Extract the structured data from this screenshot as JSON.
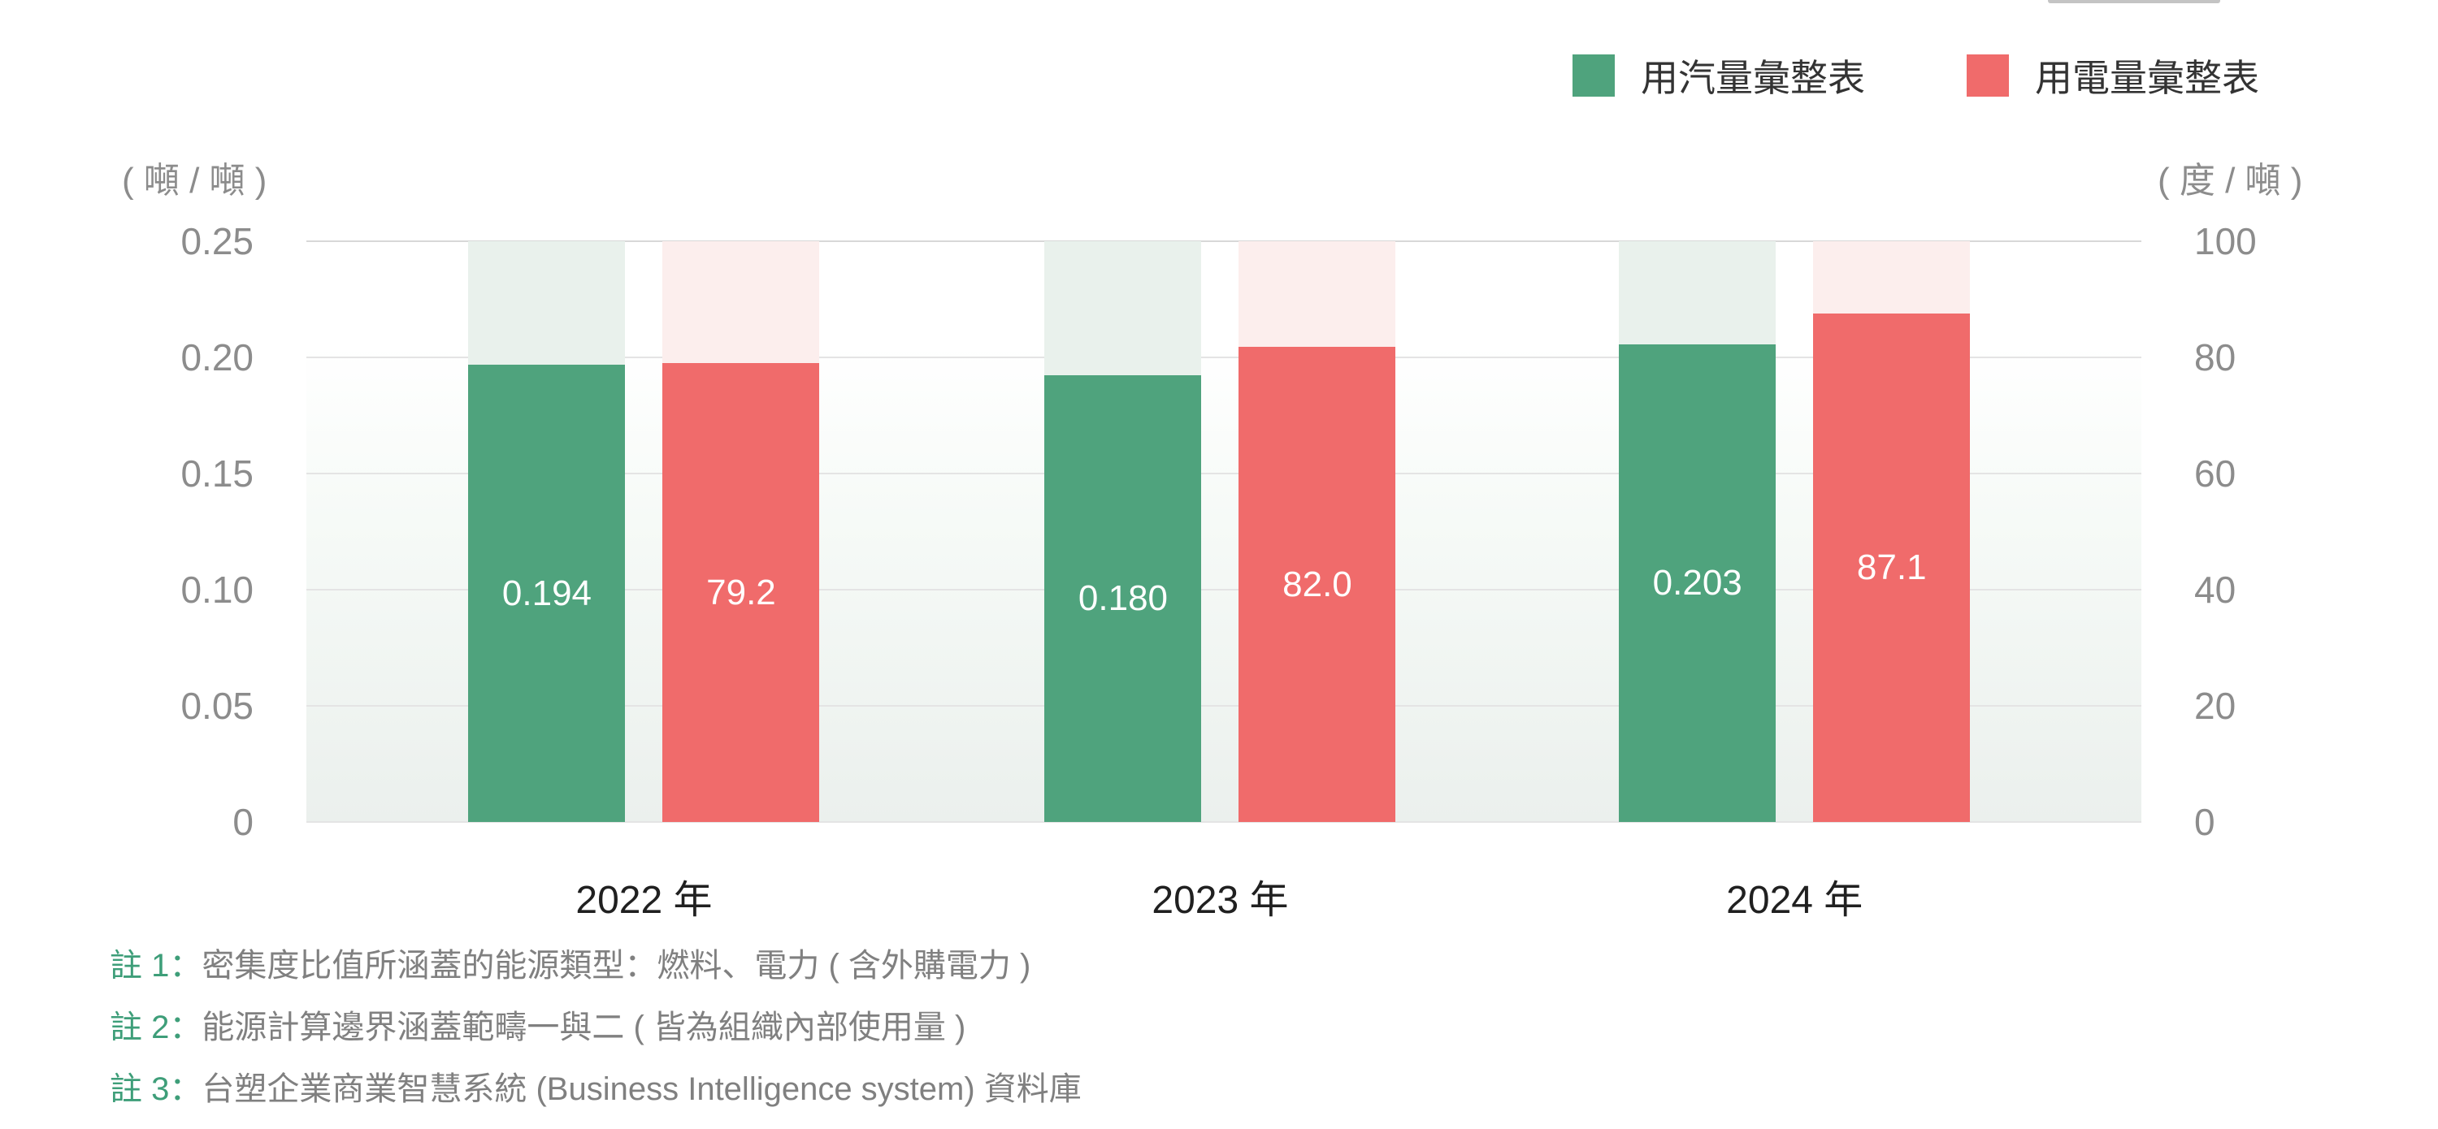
{
  "legend": {
    "items": [
      {
        "label": "用汽量彙整表",
        "color": "#4FA37D"
      },
      {
        "label": "用電量彙整表",
        "color": "#F06B6B"
      }
    ]
  },
  "chart_data": {
    "type": "bar",
    "categories": [
      "2022 年",
      "2023 年",
      "2024 年"
    ],
    "series": [
      {
        "name": "用汽量彙整表",
        "axis": "left",
        "color": "#4FA37D",
        "track_color": "#E9F1EC",
        "values": [
          0.194,
          0.18,
          0.203
        ],
        "labels": [
          "0.194",
          "0.180",
          "0.203"
        ]
      },
      {
        "name": "用電量彙整表",
        "axis": "right",
        "color": "#F06B6B",
        "track_color": "#FCEEED",
        "values": [
          79.2,
          82.0,
          87.1
        ],
        "labels": [
          "79.2",
          "82.0",
          "87.1"
        ]
      }
    ],
    "left_axis": {
      "unit": "( 噸 / 噸 )",
      "range": [
        0,
        0.25
      ],
      "ticks": [
        "0.25",
        "0.20",
        "0.15",
        "0.10",
        "0.05",
        "0"
      ]
    },
    "right_axis": {
      "unit": "( 度 / 噸 )",
      "range": [
        0,
        100
      ],
      "ticks": [
        "100",
        "80",
        "60",
        "40",
        "20",
        "0"
      ]
    },
    "grid": true,
    "legend_position": "top-right",
    "layout": {
      "group_center_fractions": [
        0.184,
        0.498,
        0.811
      ],
      "drawn_height_fractions": [
        [
          0.787,
          0.769,
          0.822
        ],
        [
          0.79,
          0.818,
          0.876
        ]
      ]
    }
  },
  "notes": [
    {
      "prefix": "註 1：",
      "text": "密集度比值所涵蓋的能源類型：燃料、電力 ( 含外購電力 )"
    },
    {
      "prefix": "註 2：",
      "text": "能源計算邊界涵蓋範疇一與二 ( 皆為組織內部使用量 )"
    },
    {
      "prefix": "註 3：",
      "text": "台塑企業商業智慧系統 (Business Intelligence system) 資料庫"
    }
  ]
}
